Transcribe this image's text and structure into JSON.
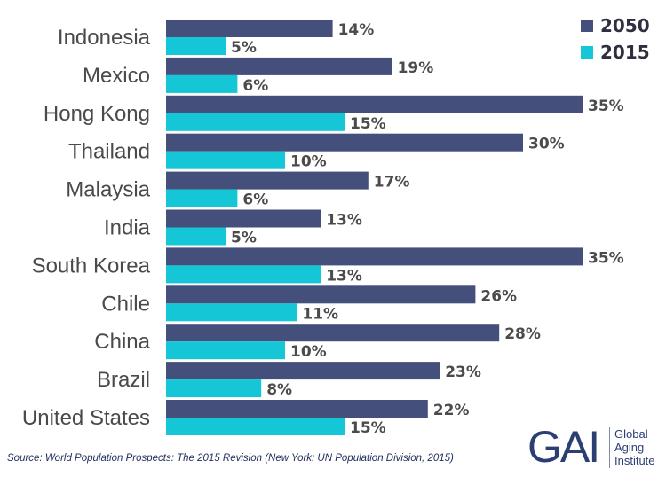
{
  "chart_data": {
    "type": "bar",
    "orientation": "horizontal",
    "categories": [
      "Indonesia",
      "Mexico",
      "Hong Kong",
      "Thailand",
      "Malaysia",
      "India",
      "South Korea",
      "Chile",
      "China",
      "Brazil",
      "United States"
    ],
    "series": [
      {
        "name": "2050",
        "values": [
          14,
          19,
          35,
          30,
          17,
          13,
          35,
          26,
          28,
          23,
          22
        ],
        "color": "#454f7c"
      },
      {
        "name": "2015",
        "values": [
          5,
          6,
          15,
          10,
          6,
          5,
          13,
          11,
          10,
          8,
          15
        ],
        "color": "#14c6d6"
      }
    ],
    "value_suffix": "%",
    "xlim": [
      0,
      35
    ],
    "grid": false,
    "legend_position": "top-right",
    "data_labels": true
  },
  "source": "Source: World Population Prospects: The 2015 Revision (New York: UN Population Division, 2015)",
  "logo": {
    "mark": "GAI",
    "line1": "Global",
    "line2": "Aging",
    "line3": "Institute"
  }
}
